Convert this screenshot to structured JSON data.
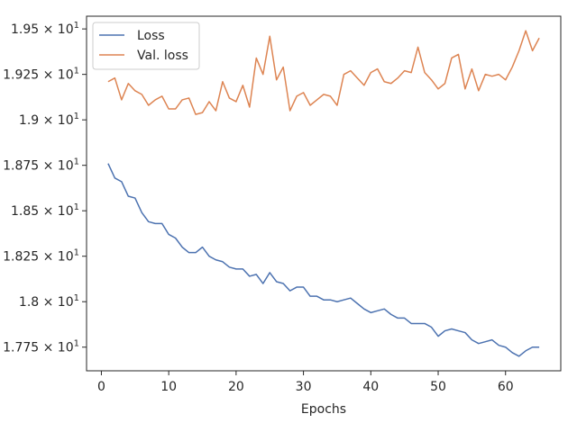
{
  "chart_data": {
    "type": "line",
    "title": "",
    "xlabel": "Epochs",
    "ylabel": "",
    "xlim": [
      -2.2,
      68.2
    ],
    "ylim": [
      17.62,
      19.57
    ],
    "x_ticks": [
      0,
      10,
      20,
      30,
      40,
      50,
      60
    ],
    "x_tick_labels": [
      "0",
      "10",
      "20",
      "30",
      "40",
      "50",
      "60"
    ],
    "y_ticks": [
      17.75,
      18.0,
      18.25,
      18.5,
      18.75,
      19.0,
      19.25,
      19.5
    ],
    "y_tick_labels": [
      "1.775",
      "1.8",
      "1.825",
      "1.85",
      "1.875",
      "1.9",
      "1.925",
      "1.95"
    ],
    "y_tick_suffix_base": "× 10",
    "y_tick_suffix_exp": "1",
    "grid": false,
    "legend_position": "upper-left",
    "x": [
      1,
      2,
      3,
      4,
      5,
      6,
      7,
      8,
      9,
      10,
      11,
      12,
      13,
      14,
      15,
      16,
      17,
      18,
      19,
      20,
      21,
      22,
      23,
      24,
      25,
      26,
      27,
      28,
      29,
      30,
      31,
      32,
      33,
      34,
      35,
      36,
      37,
      38,
      39,
      40,
      41,
      42,
      43,
      44,
      45,
      46,
      47,
      48,
      49,
      50,
      51,
      52,
      53,
      54,
      55,
      56,
      57,
      58,
      59,
      60,
      61,
      62,
      63,
      64,
      65
    ],
    "series": [
      {
        "name": "Loss",
        "color": "#4c72b0",
        "values": [
          18.76,
          18.68,
          18.66,
          18.58,
          18.57,
          18.49,
          18.44,
          18.43,
          18.43,
          18.37,
          18.35,
          18.3,
          18.27,
          18.27,
          18.3,
          18.25,
          18.23,
          18.22,
          18.19,
          18.18,
          18.18,
          18.14,
          18.15,
          18.1,
          18.16,
          18.11,
          18.1,
          18.06,
          18.08,
          18.08,
          18.03,
          18.03,
          18.01,
          18.01,
          18.0,
          18.01,
          18.02,
          17.99,
          17.96,
          17.94,
          17.95,
          17.96,
          17.93,
          17.91,
          17.91,
          17.88,
          17.88,
          17.88,
          17.86,
          17.81,
          17.84,
          17.85,
          17.84,
          17.83,
          17.79,
          17.77,
          17.78,
          17.79,
          17.76,
          17.75,
          17.72,
          17.7,
          17.73,
          17.75,
          17.75
        ]
      },
      {
        "name": "Val. loss",
        "color": "#dd8452",
        "values": [
          19.21,
          19.23,
          19.11,
          19.2,
          19.16,
          19.14,
          19.08,
          19.11,
          19.13,
          19.06,
          19.06,
          19.11,
          19.12,
          19.03,
          19.04,
          19.1,
          19.05,
          19.21,
          19.12,
          19.1,
          19.19,
          19.07,
          19.34,
          19.25,
          19.46,
          19.22,
          19.29,
          19.05,
          19.13,
          19.15,
          19.08,
          19.11,
          19.14,
          19.13,
          19.08,
          19.25,
          19.27,
          19.23,
          19.19,
          19.26,
          19.28,
          19.21,
          19.2,
          19.23,
          19.27,
          19.26,
          19.4,
          19.26,
          19.22,
          19.17,
          19.2,
          19.34,
          19.36,
          19.17,
          19.28,
          19.16,
          19.25,
          19.24,
          19.25,
          19.22,
          19.29,
          19.38,
          19.49,
          19.38,
          19.45
        ]
      }
    ]
  }
}
